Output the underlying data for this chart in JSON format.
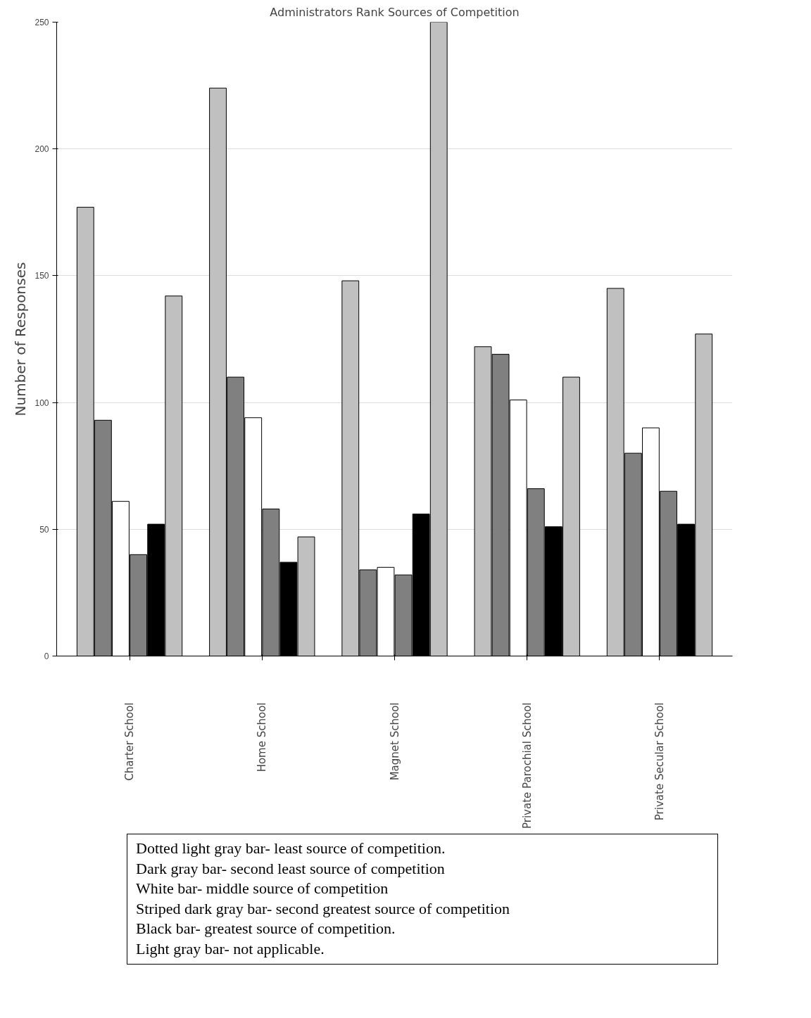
{
  "chart_data": {
    "type": "bar",
    "title": "Administrators Rank Sources of Competition",
    "ylabel": "Number of Responses",
    "categories": [
      "Charter School",
      "Home School",
      "Magnet School",
      "Private Parochial School",
      "Private Secular School"
    ],
    "series": [
      {
        "color": "#c0c0c0",
        "values": [
          177,
          224,
          148,
          122,
          145
        ]
      },
      {
        "color": "#808080",
        "values": [
          93,
          110,
          34,
          119,
          80
        ]
      },
      {
        "color": "#ffffff",
        "values": [
          61,
          94,
          35,
          101,
          90
        ]
      },
      {
        "color": "#808080",
        "values": [
          40,
          58,
          32,
          66,
          65
        ]
      },
      {
        "color": "#000000",
        "values": [
          52,
          37,
          56,
          51,
          52
        ]
      },
      {
        "color": "#c0c0c0",
        "values": [
          142,
          47,
          250,
          110,
          127
        ]
      }
    ],
    "ylim": [
      0,
      250
    ],
    "yticks": [
      0,
      50,
      100,
      150,
      200,
      250
    ],
    "grid": "y",
    "annotations": [
      "Dotted light gray bar- least source of competition.",
      "Dark gray bar- second least source of competition",
      "White bar- middle source of competition",
      "Striped dark gray bar- second greatest source of competition",
      "Black bar- greatest source of competition.",
      "Light gray bar- not applicable."
    ]
  }
}
